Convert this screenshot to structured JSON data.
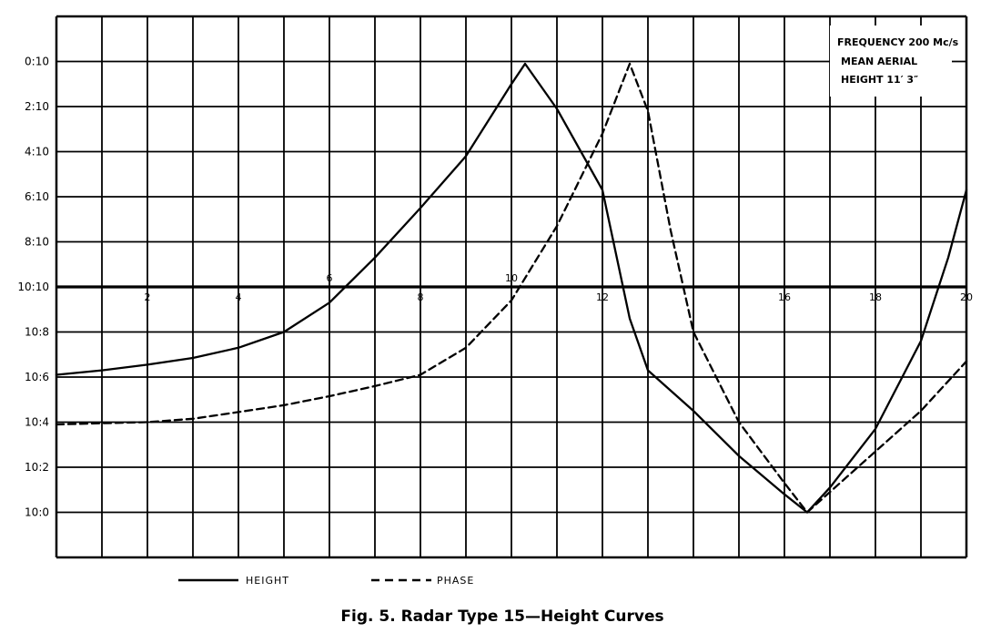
{
  "chart_data": {
    "type": "line",
    "title": "Fig. 5.    Radar Type 15—Height Curves",
    "annotation": [
      "FREQUENCY 200 Mc/s",
      "MEAN AERIAL",
      "HEIGHT 11′ 3″"
    ],
    "x_tick_labels": [
      {
        "v": 2,
        "label": "2"
      },
      {
        "v": 4,
        "label": "4"
      },
      {
        "v": 6,
        "label": "6"
      },
      {
        "v": 8,
        "label": "8"
      },
      {
        "v": 10,
        "label": "10"
      },
      {
        "v": 12,
        "label": "12"
      },
      {
        "v": 16,
        "label": "16"
      },
      {
        "v": 18,
        "label": "18"
      },
      {
        "v": 20,
        "label": "20"
      }
    ],
    "y_tick_labels": [
      {
        "v": 20,
        "label": "0:10"
      },
      {
        "v": 18,
        "label": "2:10"
      },
      {
        "v": 16,
        "label": "4:10"
      },
      {
        "v": 14,
        "label": "6:10"
      },
      {
        "v": 12,
        "label": "8:10"
      },
      {
        "v": 10,
        "label": "10:10"
      },
      {
        "v": 8,
        "label": "10:8"
      },
      {
        "v": 6,
        "label": "10:6"
      },
      {
        "v": 4,
        "label": "10:4"
      },
      {
        "v": 2,
        "label": "10:2"
      },
      {
        "v": 0,
        "label": "10:0"
      }
    ],
    "xlim": [
      0,
      20
    ],
    "ylim": [
      -2,
      22
    ],
    "grid": true,
    "legend_position": "bottom",
    "series": [
      {
        "name": "HEIGHT",
        "style": "solid",
        "points": [
          [
            0,
            6.1
          ],
          [
            1,
            6.3
          ],
          [
            2,
            6.55
          ],
          [
            3,
            6.85
          ],
          [
            4,
            7.3
          ],
          [
            5,
            8.0
          ],
          [
            6,
            9.3
          ],
          [
            7,
            11.3
          ],
          [
            8,
            13.5
          ],
          [
            9,
            15.8
          ],
          [
            10,
            19.0
          ],
          [
            10.3,
            19.9
          ],
          [
            11,
            17.9
          ],
          [
            12,
            14.3
          ],
          [
            12.6,
            8.6
          ],
          [
            13,
            6.3
          ],
          [
            14,
            4.5
          ],
          [
            15,
            2.5
          ],
          [
            16,
            0.8
          ],
          [
            16.5,
            0.0
          ],
          [
            17,
            1.1
          ],
          [
            18,
            3.7
          ],
          [
            19,
            7.6
          ],
          [
            19.6,
            11.3
          ],
          [
            20,
            14.3
          ]
        ]
      },
      {
        "name": "PHASE",
        "style": "dashed",
        "points": [
          [
            0,
            3.9
          ],
          [
            1,
            3.95
          ],
          [
            2,
            4.0
          ],
          [
            3,
            4.15
          ],
          [
            4,
            4.45
          ],
          [
            5,
            4.75
          ],
          [
            6,
            5.15
          ],
          [
            7,
            5.6
          ],
          [
            8,
            6.1
          ],
          [
            9,
            7.3
          ],
          [
            10,
            9.4
          ],
          [
            11,
            12.7
          ],
          [
            12,
            16.8
          ],
          [
            12.6,
            19.9
          ],
          [
            13,
            17.8
          ],
          [
            13.5,
            12.5
          ],
          [
            14,
            8.0
          ],
          [
            15,
            4.0
          ],
          [
            16,
            1.3
          ],
          [
            16.5,
            0.0
          ],
          [
            17,
            0.9
          ],
          [
            18,
            2.7
          ],
          [
            19,
            4.5
          ],
          [
            20,
            6.7
          ]
        ]
      }
    ],
    "legend": [
      {
        "label": "HEIGHT",
        "style": "solid"
      },
      {
        "label": "PHASE",
        "style": "dashed"
      }
    ]
  }
}
